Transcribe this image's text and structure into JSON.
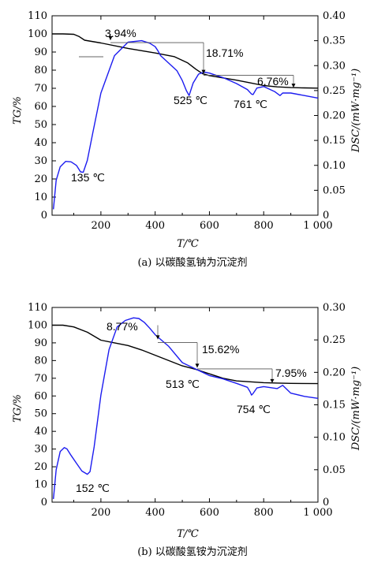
{
  "chart_data": [
    {
      "type": "line",
      "caption": "(a) 以碳酸氢钠为沉淀剂",
      "xlabel": "T/℃",
      "ylabel_left": "TG/%",
      "ylabel_right": "DSC/(mW·mg⁻¹)",
      "xlim": [
        20,
        1000
      ],
      "ylim_left": [
        0,
        110
      ],
      "ylim_right": [
        0,
        0.4
      ],
      "x_ticks": [
        "200",
        "400",
        "600",
        "800",
        "1 000"
      ],
      "y_ticks_left": [
        "0",
        "10",
        "20",
        "30",
        "40",
        "50",
        "60",
        "70",
        "80",
        "90",
        "100",
        "110"
      ],
      "y_ticks_right": [
        "0",
        "0.05",
        "0.10",
        "0.15",
        "0.20",
        "0.25",
        "0.30",
        "0.35",
        "0.40"
      ],
      "series": [
        {
          "name": "TG",
          "axis": "left",
          "color": "#000000",
          "x": [
            20,
            60,
            100,
            120,
            140,
            200,
            300,
            400,
            470,
            520,
            550,
            575,
            600,
            700,
            750,
            800,
            850,
            900,
            950,
            1000
          ],
          "y": [
            100,
            100,
            99.8,
            98.5,
            96.5,
            95,
            92,
            89.5,
            87.5,
            84,
            80.5,
            78,
            77,
            74.5,
            73,
            71.5,
            70.8,
            70.4,
            70.2,
            70.1
          ]
        },
        {
          "name": "DSC",
          "axis": "right",
          "color": "#1c1cf0",
          "x": [
            25,
            35,
            50,
            70,
            90,
            110,
            125,
            135,
            150,
            170,
            200,
            250,
            300,
            350,
            380,
            400,
            410,
            420,
            450,
            480,
            500,
            515,
            525,
            540,
            560,
            580,
            600,
            650,
            700,
            740,
            755,
            761,
            775,
            800,
            840,
            860,
            870,
            900,
            950,
            1000
          ],
          "y": [
            0.012,
            0.07,
            0.097,
            0.108,
            0.107,
            0.1,
            0.087,
            0.086,
            0.11,
            0.165,
            0.245,
            0.32,
            0.347,
            0.35,
            0.345,
            0.338,
            0.33,
            0.32,
            0.305,
            0.29,
            0.27,
            0.25,
            0.24,
            0.265,
            0.283,
            0.287,
            0.285,
            0.276,
            0.264,
            0.252,
            0.243,
            0.242,
            0.255,
            0.258,
            0.248,
            0.24,
            0.245,
            0.245,
            0.24,
            0.235
          ]
        }
      ],
      "annotations": [
        {
          "text": "3.94%",
          "x": 140,
          "y": 96.5
        },
        {
          "text": "18.71%",
          "x": 570,
          "y": 78
        },
        {
          "text": "6.76%",
          "x": 910,
          "y": 70.4
        },
        {
          "text": "135 ℃",
          "x": 135,
          "y": 0.086
        },
        {
          "text": "525 ℃",
          "x": 525,
          "y": 0.24
        },
        {
          "text": "761 ℃",
          "x": 761,
          "y": 0.242
        }
      ]
    },
    {
      "type": "line",
      "caption": "(b) 以碳酸氢铵为沉淀剂",
      "xlabel": "T/℃",
      "ylabel_left": "TG/%",
      "ylabel_right": "DSC/(mW·mg⁻¹)",
      "xlim": [
        20,
        1000
      ],
      "ylim_left": [
        0,
        110
      ],
      "ylim_right": [
        0,
        0.3
      ],
      "x_ticks": [
        "200",
        "400",
        "600",
        "800",
        "1 000"
      ],
      "y_ticks_left": [
        "0",
        "10",
        "20",
        "30",
        "40",
        "50",
        "60",
        "70",
        "80",
        "90",
        "100",
        "110"
      ],
      "y_ticks_right": [
        "0",
        "0.05",
        "0.10",
        "0.15",
        "0.20",
        "0.25",
        "0.30"
      ],
      "series": [
        {
          "name": "TG",
          "axis": "left",
          "color": "#000000",
          "x": [
            20,
            60,
            100,
            150,
            200,
            250,
            300,
            350,
            400,
            450,
            500,
            550,
            600,
            650,
            700,
            800,
            850,
            900,
            1000
          ],
          "y": [
            100,
            100,
            99,
            96,
            91.5,
            90,
            88.5,
            86,
            83,
            80,
            77,
            75,
            72.5,
            70,
            68.5,
            67.5,
            67.3,
            67.1,
            67
          ]
        },
        {
          "name": "DSC",
          "axis": "right",
          "color": "#1c1cf0",
          "x": [
            25,
            35,
            50,
            65,
            75,
            90,
            110,
            130,
            150,
            160,
            175,
            200,
            230,
            260,
            290,
            320,
            340,
            360,
            380,
            400,
            450,
            500,
            550,
            600,
            650,
            700,
            740,
            750,
            755,
            760,
            775,
            800,
            850,
            870,
            900,
            950,
            1000
          ],
          "y": [
            0.005,
            0.05,
            0.078,
            0.084,
            0.082,
            0.072,
            0.06,
            0.048,
            0.043,
            0.047,
            0.085,
            0.165,
            0.235,
            0.27,
            0.28,
            0.284,
            0.283,
            0.277,
            0.268,
            0.258,
            0.24,
            0.215,
            0.205,
            0.195,
            0.19,
            0.183,
            0.177,
            0.17,
            0.165,
            0.167,
            0.176,
            0.178,
            0.175,
            0.18,
            0.168,
            0.163,
            0.16
          ]
        }
      ],
      "annotations": [
        {
          "text": "8.77%",
          "x": 200,
          "y": 91.5
        },
        {
          "text": "15.62%",
          "x": 555,
          "y": 75.3
        },
        {
          "text": "7.95%",
          "x": 840,
          "y": 67.3
        },
        {
          "text": "152 ℃",
          "x": 152,
          "y": 0.043
        },
        {
          "text": "513 ℃",
          "x": 513,
          "y": 0.215
        },
        {
          "text": "754 ℃",
          "x": 754,
          "y": 0.165
        }
      ]
    }
  ]
}
